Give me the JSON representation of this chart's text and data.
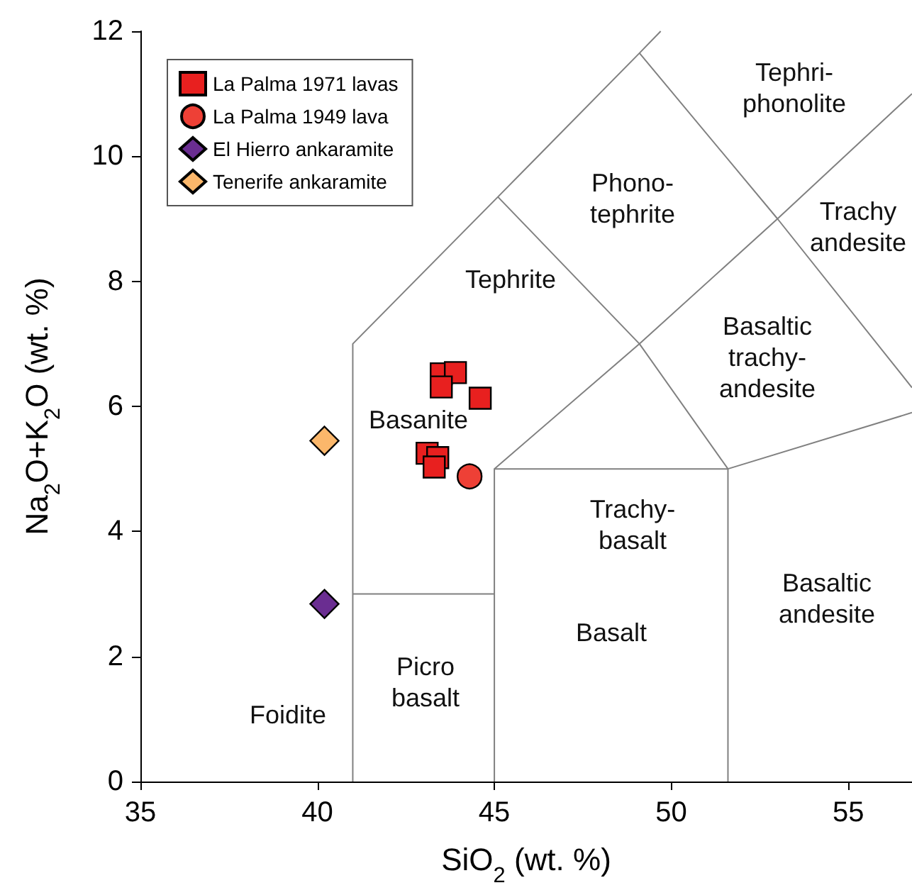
{
  "chart_data": {
    "type": "scatter",
    "xlabel": "SiO$_{2}$ (wt. %)",
    "ylabel": "Na$_{2}$O+K$_{2}$O (wt. %)",
    "xlim": [
      35,
      56.8
    ],
    "xticks": [
      35,
      40,
      45,
      50,
      55
    ],
    "ylim": [
      0,
      12
    ],
    "yticks": [
      0,
      2,
      4,
      6,
      8,
      10,
      12
    ],
    "grid": false,
    "legend": "top left",
    "series": [
      {
        "type": "line",
        "color": "#808080",
        "marker": "none",
        "x": [
          41,
          41,
          45.1,
          49.1,
          49.7
        ],
        "values": [
          0,
          7,
          9.35,
          11.65,
          12
        ]
      },
      {
        "type": "line",
        "color": "#808080",
        "marker": "none",
        "x": [
          41,
          45
        ],
        "values": [
          3,
          3
        ]
      },
      {
        "type": "line",
        "color": "#808080",
        "marker": "none",
        "x": [
          45,
          45,
          51.6,
          51.6
        ],
        "values": [
          0,
          5,
          5,
          0
        ]
      },
      {
        "type": "line",
        "color": "#808080",
        "marker": "none",
        "x": [
          45,
          49.1,
          51.6
        ],
        "values": [
          5,
          7,
          5
        ]
      },
      {
        "type": "line",
        "color": "#808080",
        "marker": "none",
        "x": [
          51.6,
          56.8
        ],
        "values": [
          5,
          5.9
        ]
      },
      {
        "type": "line",
        "color": "#808080",
        "marker": "none",
        "x": [
          45.1,
          49.1,
          53,
          56.8
        ],
        "values": [
          9.35,
          7,
          9,
          6.3
        ]
      },
      {
        "type": "line",
        "color": "#808080",
        "marker": "none",
        "x": [
          49.1,
          53,
          56.8
        ],
        "values": [
          11.65,
          9,
          11
        ]
      },
      {
        "name": "La Palma 1971 lavas",
        "color": "#e8201f",
        "marker": "square",
        "x": [
          43.5,
          43.9,
          43.5,
          44.6,
          43.1,
          43.4,
          43.3
        ],
        "values": [
          6.52,
          6.54,
          6.31,
          6.13,
          5.25,
          5.18,
          5.03
        ]
      },
      {
        "name": "La Palma 1949 lava",
        "color": "#ee4036",
        "marker": "circle",
        "x": [
          44.3
        ],
        "values": [
          4.88
        ]
      },
      {
        "name": "El Hierro ankaramite",
        "color": "#6a2d91",
        "marker": "diamond",
        "x": [
          40.2
        ],
        "values": [
          2.84
        ]
      },
      {
        "name": "Tenerife ankaramite",
        "color": "#fbb76b",
        "marker": "diamond",
        "x": [
          40.2
        ],
        "values": [
          5.45
        ]
      }
    ],
    "annotations": [
      "Tephri-\nphonolite",
      "Phono-\ntephrite",
      "Trachy\nandesite",
      "Tephrite",
      "Basaltic\ntrachy-\nandesite",
      "Basanite",
      "Trachy-\nbasalt",
      "Basaltic\nandesite",
      "Basalt",
      "Picro\nbasalt",
      "Foidite"
    ]
  }
}
